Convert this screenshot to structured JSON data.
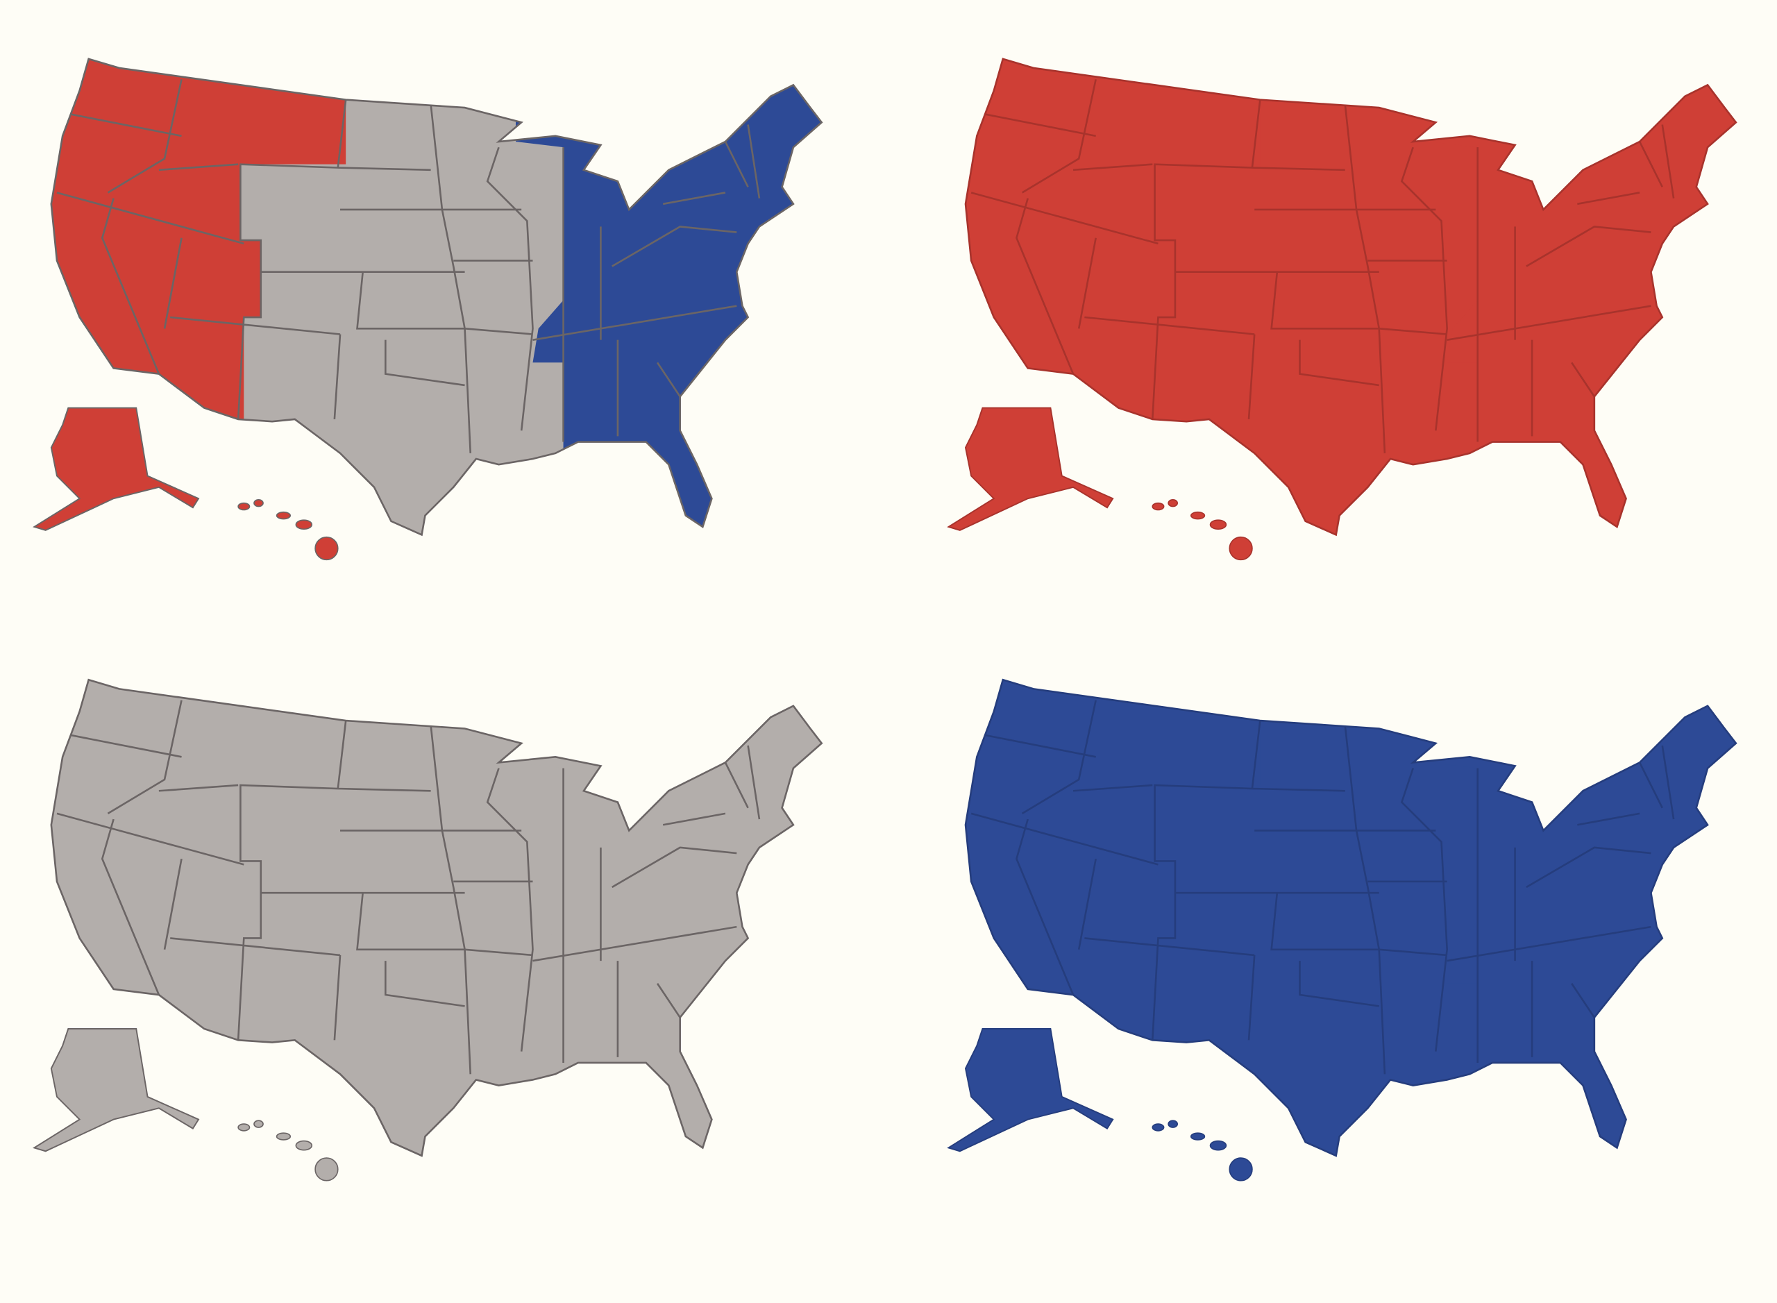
{
  "colors": {
    "background": "#fefdf6",
    "red": "#cf3f36",
    "blue": "#2d4a96",
    "gray": "#b3aeab",
    "border_gray": "#6b6565",
    "border_red": "#a8332c",
    "border_blue": "#253d7d"
  },
  "panels": [
    {
      "id": "mixed",
      "position": "top-left",
      "west": "red",
      "central": "gray",
      "east": "blue",
      "border": "border_gray"
    },
    {
      "id": "all-red",
      "position": "top-right",
      "west": "red",
      "central": "red",
      "east": "red",
      "border": "border_red"
    },
    {
      "id": "all-gray",
      "position": "bottom-left",
      "west": "gray",
      "central": "gray",
      "east": "gray",
      "border": "border_gray"
    },
    {
      "id": "all-blue",
      "position": "bottom-right",
      "west": "blue",
      "central": "blue",
      "east": "blue",
      "border": "border_blue"
    }
  ]
}
